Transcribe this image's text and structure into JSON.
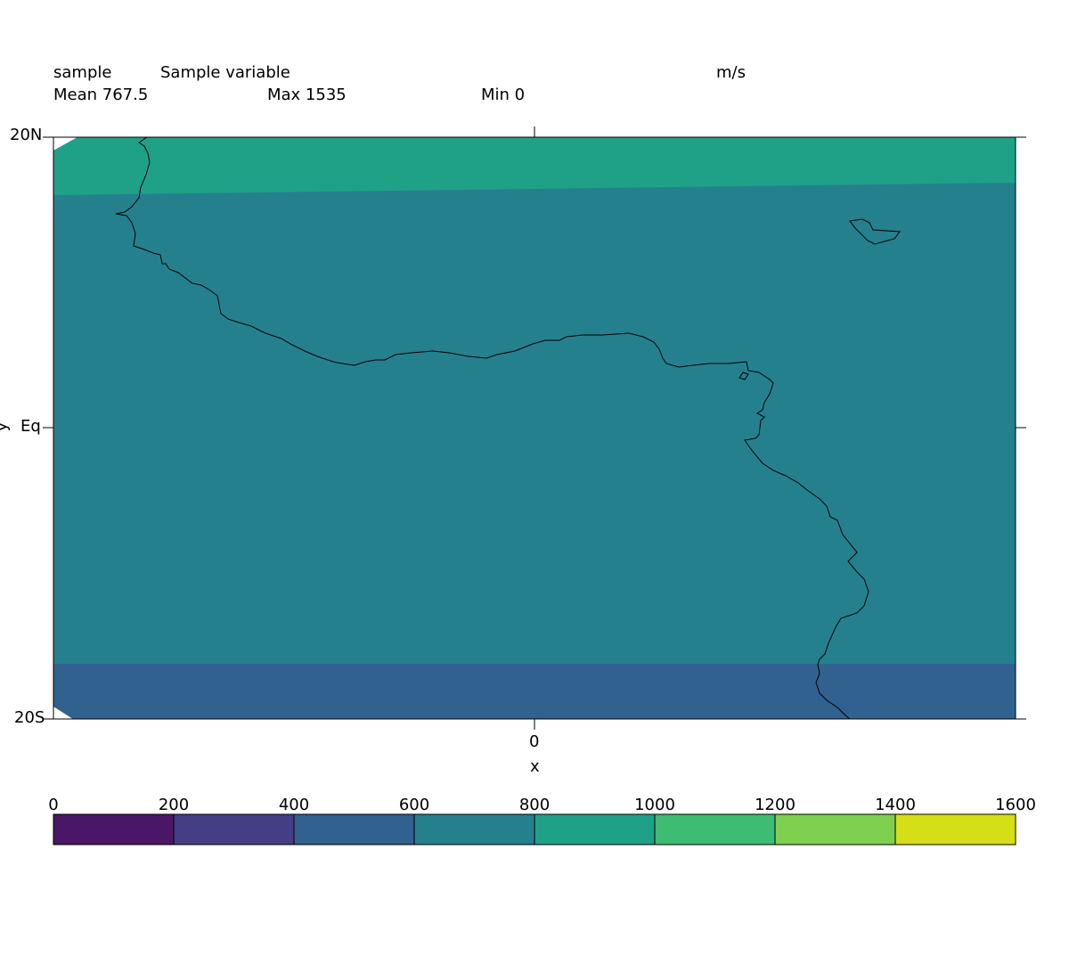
{
  "header": {
    "name": "sample",
    "long_name": "Sample variable",
    "units": "m/s",
    "mean_text": "Mean 767.5",
    "max_text": "Max 1535",
    "min_text": "Min 0"
  },
  "axes": {
    "y_label": "y",
    "x_label": "x",
    "y_ticks": [
      "20N",
      "Eq",
      "20S"
    ],
    "x_ticks": [
      "0"
    ]
  },
  "colorbar": {
    "labels": [
      "0",
      "200",
      "400",
      "600",
      "800",
      "1000",
      "1200",
      "1400",
      "1600"
    ],
    "colors": [
      "#4a1766",
      "#433e85",
      "#31618e",
      "#25808e",
      "#1fa187",
      "#3ebc74",
      "#7fd04f",
      "#d6df16"
    ]
  },
  "chart_data": {
    "type": "heatmap",
    "title": "Sample variable",
    "units": "m/s",
    "xlabel": "x",
    "ylabel": "y",
    "ylim": [
      "20S",
      "20N"
    ],
    "statistics": {
      "mean": 767.5,
      "max": 1535,
      "min": 0
    },
    "levels": [
      0,
      200,
      400,
      600,
      800,
      1000,
      1200,
      1400,
      1600
    ],
    "bands": [
      {
        "range": [
          800,
          1000
        ],
        "region": "north"
      },
      {
        "range": [
          600,
          800
        ],
        "region": "middle"
      },
      {
        "range": [
          400,
          600
        ],
        "region": "south"
      }
    ],
    "coastlines": true
  }
}
